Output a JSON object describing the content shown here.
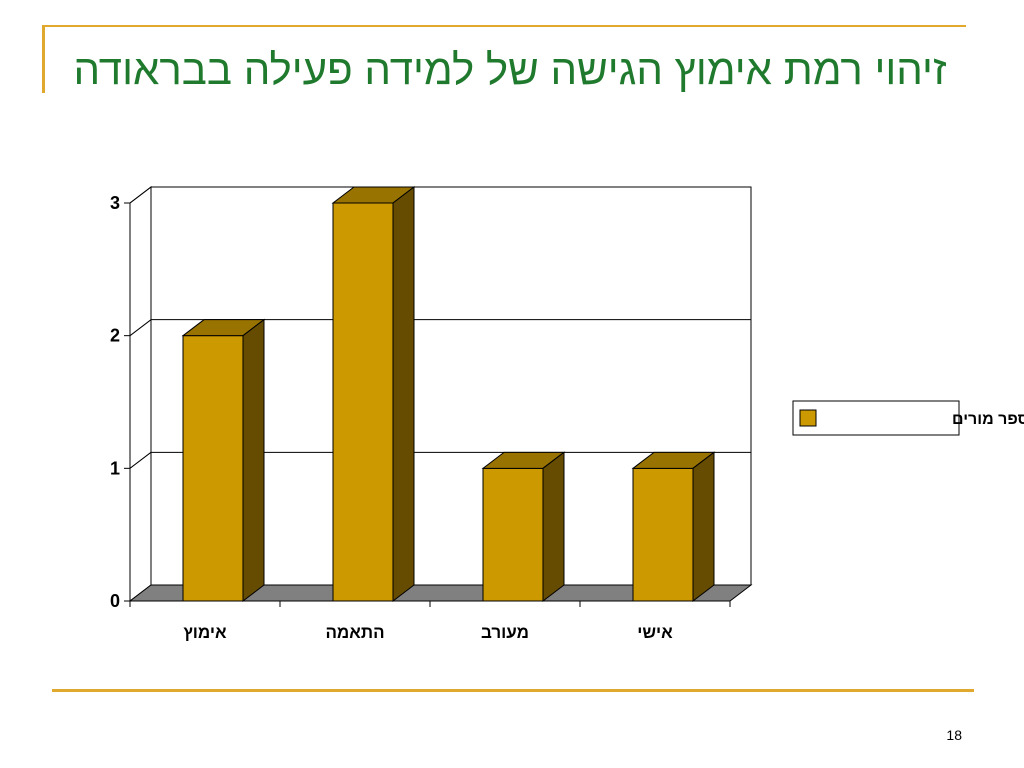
{
  "slide": {
    "title": "זיהוי רמת אימוץ הגישה של למידה פעילה בבראודה",
    "slide_number": "18",
    "accent_color": "#e0a92e",
    "title_color": "#1f7a2e"
  },
  "chart_data": {
    "type": "bar",
    "categories": [
      "אימוץ",
      "התאמה",
      "מעורב",
      "אישי"
    ],
    "series": [
      {
        "name": "מספר מורים",
        "values": [
          2,
          3,
          1,
          1
        ]
      }
    ],
    "title": "",
    "xlabel": "",
    "ylabel": "",
    "ylim": [
      0,
      3
    ],
    "yticks": [
      "0",
      "1",
      "2",
      "3"
    ],
    "grid": true,
    "legend_position": "right",
    "style": "3d",
    "colors": {
      "bar_front": "#cc9900",
      "bar_top": "#997300",
      "bar_side": "#664c00",
      "floor": "#808080"
    }
  }
}
